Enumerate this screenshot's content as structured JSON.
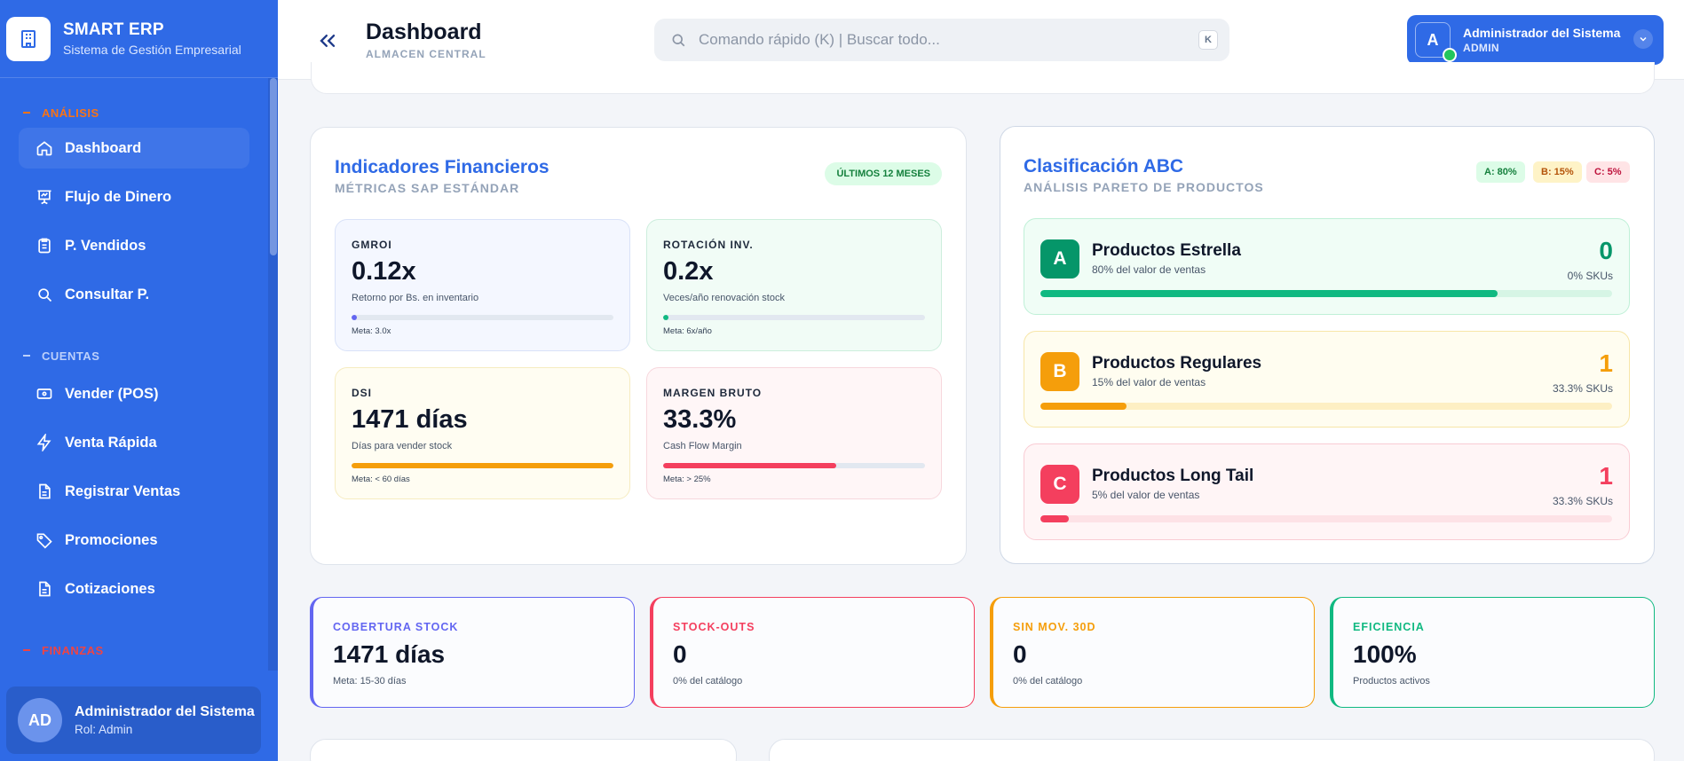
{
  "brand": {
    "title": "SMART ERP",
    "subtitle": "Sistema de Gestión Empresarial"
  },
  "sidebar": {
    "sections": [
      {
        "label": "ANÁLISIS",
        "color": "#f97316"
      },
      {
        "label": "CUENTAS",
        "color": "#bcd0fb"
      },
      {
        "label": "FINANZAS",
        "color": "#ef4444"
      }
    ],
    "items": [
      {
        "label": "Dashboard",
        "icon": "home-icon"
      },
      {
        "label": "Flujo de Dinero",
        "icon": "presentation-chart-icon"
      },
      {
        "label": "P. Vendidos",
        "icon": "clipboard-icon"
      },
      {
        "label": "Consultar P.",
        "icon": "search-icon"
      },
      {
        "label": "Vender (POS)",
        "icon": "cash-register-icon"
      },
      {
        "label": "Venta Rápida",
        "icon": "lightning-icon"
      },
      {
        "label": "Registrar Ventas",
        "icon": "document-icon"
      },
      {
        "label": "Promociones",
        "icon": "tag-icon"
      },
      {
        "label": "Cotizaciones",
        "icon": "document-icon"
      }
    ],
    "user": {
      "initials": "AD",
      "name": "Administrador del Sistema",
      "role": "Rol: Admin"
    }
  },
  "header": {
    "title": "Dashboard",
    "subtitle": "ALMACEN CENTRAL",
    "search_placeholder": "Comando rápido (K) | Buscar todo...",
    "search_shortcut": "K",
    "user": {
      "initial": "A",
      "name": "Administrador del Sistema",
      "role": "ADMIN"
    }
  },
  "financial": {
    "title": "Indicadores Financieros",
    "subtitle": "MÉTRICAS SAP ESTÁNDAR",
    "period": "ÚLTIMOS 12 MESES",
    "metrics": [
      {
        "label": "GMROI",
        "value": "0.12x",
        "desc": "Retorno por Bs. en inventario",
        "meta": "Meta: 3.0x",
        "progress": 0.02,
        "color": "#6366f1"
      },
      {
        "label": "ROTACIÓN INV.",
        "value": "0.2x",
        "desc": "Veces/año renovación stock",
        "meta": "Meta: 6x/año",
        "progress": 0.01,
        "color": "#10b981"
      },
      {
        "label": "DSI",
        "value": "1471 días",
        "desc": "Días para vender stock",
        "meta": "Meta: < 60 días",
        "progress": 1.0,
        "color": "#f59e0b"
      },
      {
        "label": "MARGEN BRUTO",
        "value": "33.3%",
        "desc": "Cash Flow Margin",
        "meta": "Meta: > 25%",
        "progress": 0.66,
        "color": "#f43f5e"
      }
    ]
  },
  "abc": {
    "title": "Clasificación ABC",
    "subtitle": "ANÁLISIS PARETO DE PRODUCTOS",
    "chips": [
      "A: 80%",
      "B: 15%",
      "C: 5%"
    ],
    "rows": [
      {
        "letter": "A",
        "name": "Productos Estrella",
        "desc": "80% del valor de ventas",
        "count": "0",
        "pct": "0% SKUs",
        "progress": 0.8,
        "color": "#10b981"
      },
      {
        "letter": "B",
        "name": "Productos Regulares",
        "desc": "15% del valor de ventas",
        "count": "1",
        "pct": "33.3% SKUs",
        "progress": 0.15,
        "color": "#f59e0b"
      },
      {
        "letter": "C",
        "name": "Productos Long Tail",
        "desc": "5% del valor de ventas",
        "count": "1",
        "pct": "33.3% SKUs",
        "progress": 0.05,
        "color": "#f43f5e"
      }
    ]
  },
  "kpis": [
    {
      "label": "COBERTURA STOCK",
      "value": "1471 días",
      "desc": "Meta: 15-30 días",
      "color": "#6366f1"
    },
    {
      "label": "STOCK-OUTS",
      "value": "0",
      "desc": "0% del catálogo",
      "color": "#f43f5e"
    },
    {
      "label": "SIN MOV. 30D",
      "value": "0",
      "desc": "0% del catálogo",
      "color": "#f59e0b"
    },
    {
      "label": "EFICIENCIA",
      "value": "100%",
      "desc": "Productos activos",
      "color": "#10b981"
    }
  ]
}
